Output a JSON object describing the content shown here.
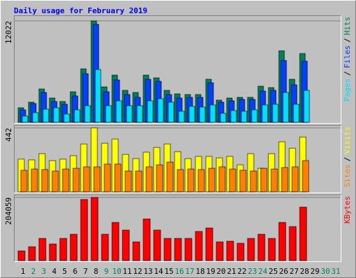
{
  "chart_data": [
    {
      "type": "bar",
      "title": "Daily usage for February 2019",
      "series": [
        {
          "name": "Hits",
          "color": "#00805c",
          "values": [
            1729,
            2388,
            3952,
            2882,
            2470,
            3623,
            6340,
            12022,
            4199,
            5599,
            3788,
            3541,
            5599,
            5270,
            3788,
            3376,
            3294,
            3294,
            5105,
            2635,
            2882,
            2964,
            2964,
            4282,
            4117,
            8481,
            5105,
            8152,
            null,
            null,
            null
          ]
        },
        {
          "name": "Files",
          "color": "#0040ff",
          "values": [
            1482,
            2223,
            3541,
            2470,
            2141,
            3129,
            5764,
            11610,
            3623,
            5023,
            3294,
            2964,
            5105,
            4858,
            3294,
            2882,
            2964,
            2964,
            4693,
            2388,
            2553,
            2717,
            2717,
            3705,
            3788,
            7328,
            4446,
            7246,
            null,
            null,
            null
          ]
        },
        {
          "name": "Pages",
          "color": "#00e0ff",
          "values": [
            741,
            1153,
            1564,
            1729,
            988,
            1482,
            1976,
            6258,
            1976,
            2553,
            1976,
            1976,
            2553,
            2800,
            2388,
            1317,
            1894,
            1811,
            2059,
            1070,
            1400,
            1317,
            1482,
            2059,
            2141,
            3541,
            2141,
            3788,
            null,
            null,
            null
          ]
        }
      ],
      "ylim": [
        0,
        12022
      ],
      "yticks": [
        12022
      ],
      "grid": true,
      "legend_separator": "/"
    },
    {
      "type": "bar",
      "series": [
        {
          "name": "Visits",
          "color": "#ffff00",
          "values": [
            226,
            221,
            264,
            216,
            226,
            250,
            331,
            442,
            336,
            365,
            259,
            230,
            274,
            307,
            331,
            278,
            230,
            245,
            245,
            235,
            245,
            187,
            264,
            163,
            264,
            346,
            302,
            379,
            null,
            null,
            null
          ]
        },
        {
          "name": "Sites",
          "color": "#ff8000",
          "values": [
            149,
            158,
            154,
            144,
            158,
            163,
            173,
            173,
            192,
            192,
            144,
            144,
            173,
            187,
            206,
            154,
            158,
            154,
            163,
            173,
            158,
            149,
            144,
            163,
            158,
            168,
            173,
            216,
            null,
            null,
            null
          ]
        }
      ],
      "ylim": [
        0,
        442
      ],
      "yticks": [
        442
      ],
      "grid": true,
      "legend_separator": "/"
    },
    {
      "type": "bar",
      "categories": [
        "1",
        "2",
        "3",
        "4",
        "5",
        "6",
        "7",
        "8",
        "9",
        "10",
        "11",
        "12",
        "13",
        "14",
        "15",
        "16",
        "17",
        "18",
        "19",
        "20",
        "21",
        "22",
        "23",
        "24",
        "25",
        "26",
        "27",
        "28",
        "29",
        "30",
        "31"
      ],
      "category_colors": [
        "#000000",
        "#00805c",
        "#00805c",
        "#000000",
        "#000000",
        "#000000",
        "#000000",
        "#000000",
        "#00805c",
        "#00805c",
        "#000000",
        "#000000",
        "#000000",
        "#000000",
        "#000000",
        "#00805c",
        "#00805c",
        "#000000",
        "#000000",
        "#000000",
        "#000000",
        "#000000",
        "#00805c",
        "#00805c",
        "#000000",
        "#000000",
        "#000000",
        "#000000",
        "#000000",
        "#00805c",
        "#00805c"
      ],
      "series": [
        {
          "name": "KBytes",
          "color": "#ff0000",
          "values": [
            31388,
            44840,
            71744,
            53808,
            71744,
            85196,
            197296,
            204059,
            85196,
            123310,
            98648,
            60534,
            134520,
            98648,
            71744,
            71744,
            71744,
            94164,
            105374,
            60534,
            62776,
            56050,
            71744,
            85196,
            71744,
            123310,
            109858,
            172634,
            null,
            null,
            null
          ]
        }
      ],
      "ylim": [
        0,
        204059
      ],
      "yticks": [
        204059
      ],
      "grid": true
    }
  ]
}
